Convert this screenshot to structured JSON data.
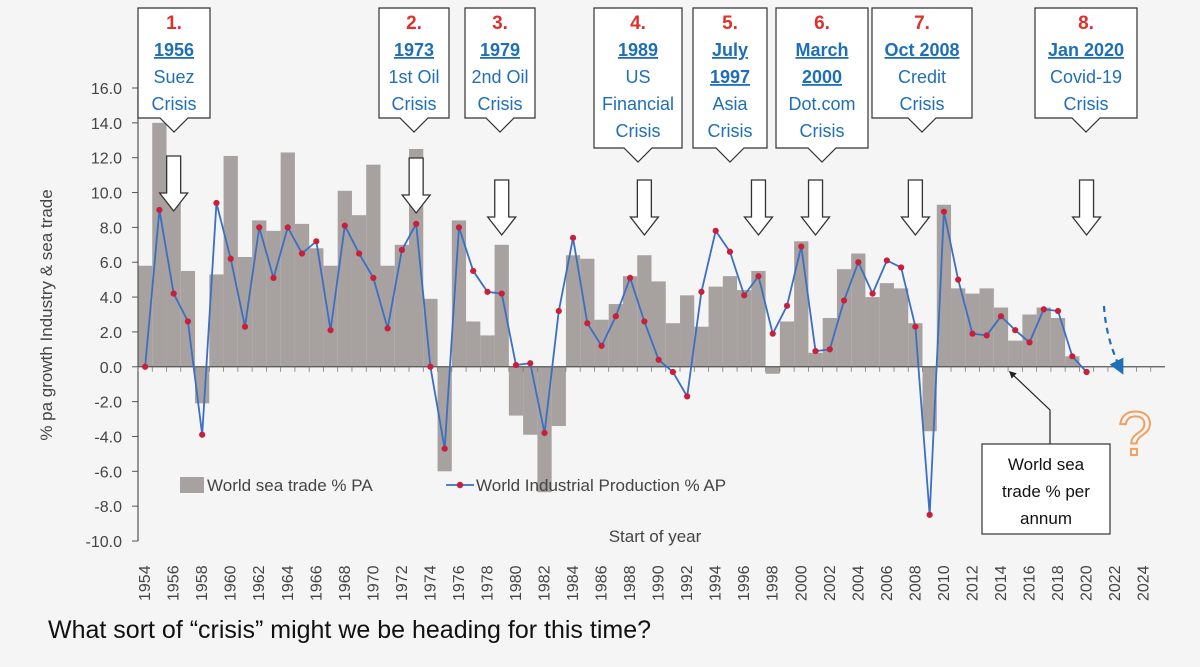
{
  "question": "What sort of “crisis” might we be heading for this time?",
  "chart_data": {
    "type": "bar",
    "xlabel": "Start of year",
    "ylabel": "% pa growth Industry & sea trade",
    "ylim": [
      -10,
      16
    ],
    "ytick_step": 2,
    "y_tick_labels": [
      "16.0",
      "14.0",
      "12.0",
      "10.0",
      "8.0",
      "6.0",
      "4.0",
      "2.0",
      "0.0",
      "-2.0",
      "-4.0",
      "-6.0",
      "-8.0",
      "-10.0"
    ],
    "x_tick_labels": [
      "1954",
      "1956",
      "1958",
      "1960",
      "1962",
      "1964",
      "1966",
      "1968",
      "1970",
      "1972",
      "1974",
      "1976",
      "1978",
      "1980",
      "1982",
      "1984",
      "1986",
      "1988",
      "1990",
      "1992",
      "1994",
      "1996",
      "1998",
      "2000",
      "2002",
      "2004",
      "2006",
      "2008",
      "2010",
      "2012",
      "2014",
      "2016",
      "2018",
      "2020",
      "2022",
      "2024"
    ],
    "x_start": 1954,
    "x_end": 2025,
    "grid": false,
    "bar_color": "#a7a1a0",
    "line_color": "#3b6fc4",
    "marker_color": "#c8203a",
    "legend": [
      {
        "label": "World sea trade % PA",
        "kind": "bar"
      },
      {
        "label": "World Industrial Production % AP",
        "kind": "line"
      }
    ],
    "series": [
      {
        "name": "World sea trade % PA",
        "kind": "bar",
        "x": [
          1954,
          1955,
          1956,
          1957,
          1958,
          1959,
          1960,
          1961,
          1962,
          1963,
          1964,
          1965,
          1966,
          1967,
          1968,
          1969,
          1970,
          1971,
          1972,
          1973,
          1974,
          1975,
          1976,
          1977,
          1978,
          1979,
          1980,
          1981,
          1982,
          1983,
          1984,
          1985,
          1986,
          1987,
          1988,
          1989,
          1990,
          1991,
          1992,
          1993,
          1994,
          1995,
          1996,
          1997,
          1998,
          1999,
          2000,
          2001,
          2002,
          2003,
          2004,
          2005,
          2006,
          2007,
          2008,
          2009,
          2010,
          2011,
          2012,
          2013,
          2014,
          2015,
          2016,
          2017,
          2018,
          2019,
          2020
        ],
        "values": [
          5.8,
          14.0,
          9.5,
          5.5,
          -2.1,
          5.3,
          12.1,
          6.3,
          8.4,
          7.8,
          12.3,
          8.2,
          6.8,
          5.8,
          10.1,
          8.7,
          11.6,
          5.8,
          7.0,
          12.5,
          3.9,
          -6.0,
          8.4,
          2.6,
          1.8,
          7.0,
          -2.8,
          -3.9,
          -7.2,
          -3.4,
          6.4,
          6.2,
          2.7,
          3.6,
          5.2,
          6.4,
          4.9,
          2.5,
          4.1,
          2.3,
          4.6,
          5.2,
          4.4,
          5.5,
          -0.4,
          2.6,
          7.2,
          0.8,
          2.8,
          5.6,
          6.5,
          4.0,
          4.8,
          4.5,
          2.5,
          -3.7,
          9.3,
          4.5,
          4.2,
          4.5,
          3.4,
          1.5,
          3.0,
          3.4,
          2.8,
          0.6,
          0.0
        ]
      },
      {
        "name": "World Industrial Production % AP",
        "kind": "line",
        "x": [
          1954,
          1955,
          1956,
          1957,
          1958,
          1959,
          1960,
          1961,
          1962,
          1963,
          1964,
          1965,
          1966,
          1967,
          1968,
          1969,
          1970,
          1971,
          1972,
          1973,
          1974,
          1975,
          1976,
          1977,
          1978,
          1979,
          1980,
          1981,
          1982,
          1983,
          1984,
          1985,
          1986,
          1987,
          1988,
          1989,
          1990,
          1991,
          1992,
          1993,
          1994,
          1995,
          1996,
          1997,
          1998,
          1999,
          2000,
          2001,
          2002,
          2003,
          2004,
          2005,
          2006,
          2007,
          2008,
          2009,
          2010,
          2011,
          2012,
          2013,
          2014,
          2015,
          2016,
          2017,
          2018,
          2019,
          2020
        ],
        "values": [
          0.0,
          9.0,
          4.2,
          2.6,
          -3.9,
          9.4,
          6.2,
          2.3,
          8.0,
          5.1,
          8.0,
          6.5,
          7.2,
          2.1,
          8.1,
          6.5,
          5.1,
          2.2,
          6.7,
          8.2,
          0.0,
          -4.7,
          8.0,
          5.5,
          4.3,
          4.2,
          0.1,
          0.2,
          -3.8,
          3.2,
          7.4,
          2.5,
          1.2,
          2.9,
          5.1,
          2.6,
          0.4,
          -0.3,
          -1.7,
          4.3,
          7.8,
          6.6,
          4.1,
          5.2,
          1.9,
          3.5,
          6.9,
          0.9,
          1.0,
          3.8,
          6.0,
          4.2,
          6.1,
          5.7,
          2.3,
          -8.5,
          8.9,
          5.0,
          1.9,
          1.8,
          2.9,
          2.1,
          1.4,
          3.3,
          3.2,
          0.6,
          -0.3
        ]
      }
    ],
    "crisis_callouts": [
      {
        "number": "1.",
        "year": "1956",
        "lines": [
          "Suez",
          "Crisis"
        ],
        "arrow_year": 1956
      },
      {
        "number": "2.",
        "year": "1973",
        "lines": [
          "1st Oil",
          "Crisis"
        ],
        "arrow_year": 1973
      },
      {
        "number": "3.",
        "year": "1979",
        "lines": [
          "2nd Oil",
          "Crisis"
        ],
        "arrow_year": 1979
      },
      {
        "number": "4.",
        "year": "1989",
        "lines": [
          "US",
          "Financial",
          "Crisis"
        ],
        "arrow_year": 1989
      },
      {
        "number": "5.",
        "year": "July",
        "year2": "1997",
        "lines": [
          "Asia",
          "Crisis"
        ],
        "arrow_year": 1997
      },
      {
        "number": "6.",
        "year": "March",
        "year2": "2000",
        "lines": [
          "Dot.com",
          "Crisis"
        ],
        "arrow_year": 2001
      },
      {
        "number": "7.",
        "year": "Oct 2008",
        "lines": [
          "Credit",
          "Crisis"
        ],
        "arrow_year": 2008
      },
      {
        "number": "8.",
        "year": "Jan 2020",
        "lines": [
          "Covid-19",
          "Crisis"
        ],
        "arrow_year": 2020
      }
    ],
    "annotation_box": {
      "lines": [
        "World sea",
        "trade % per",
        "annum"
      ],
      "points_to_year": 2014
    },
    "forecast_mark": "?"
  }
}
